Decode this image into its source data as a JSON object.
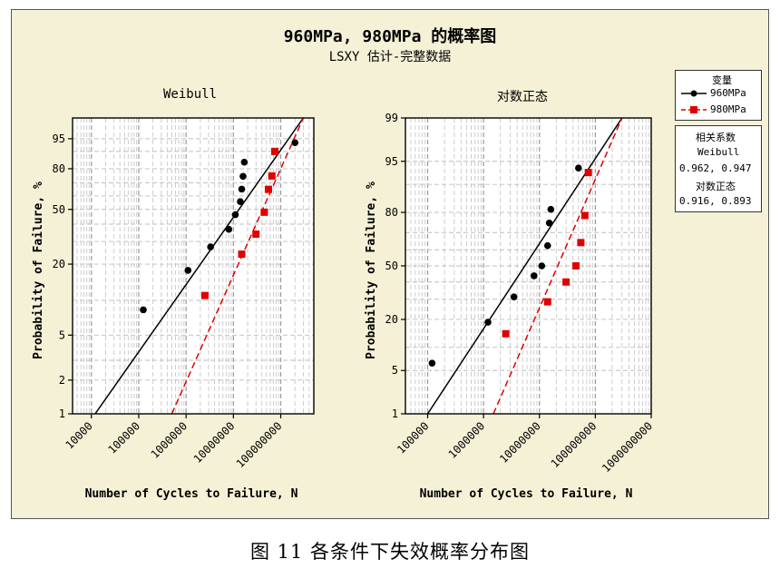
{
  "figure": {
    "title": "960MPa, 980MPa 的概率图",
    "subtitle": "LSXY 估计-完整数据",
    "caption": "图 11 各条件下失效概率分布图"
  },
  "legend": {
    "title": "变量",
    "items": [
      {
        "label": "960MPa",
        "color": "#000000",
        "marker": "circle"
      },
      {
        "label": "980MPa",
        "color": "#e00000",
        "marker": "square"
      }
    ]
  },
  "correlation_box": {
    "title": "相关系数",
    "weibull_label": "Weibull",
    "weibull_values": "0.962, 0.947",
    "lognormal_label": "对数正态",
    "lognormal_values": "0.916, 0.893"
  },
  "chart_data": [
    {
      "type": "scatter",
      "title": "Weibull",
      "xlabel": "Number of Cycles to Failure, N",
      "ylabel": "Probability of Failure, %",
      "x_scale": "log",
      "y_scale": "weibull",
      "xlim": [
        4000,
        500000000
      ],
      "ylim": [
        1,
        99
      ],
      "x_ticks": [
        "10000",
        "100000",
        "1000000",
        "10000000",
        "100000000"
      ],
      "y_ticks": [
        "1",
        "2",
        "5",
        "20",
        "50",
        "80",
        "95"
      ],
      "grid": true,
      "series": [
        {
          "name": "960MPa",
          "color": "#000000",
          "points": [
            [
              125000,
              8.3
            ],
            [
              1100000,
              17.8
            ],
            [
              3300000,
              27.3
            ],
            [
              8000000,
              36.8
            ],
            [
              11000000,
              46.3
            ],
            [
              14000000,
              55.7
            ],
            [
              15000000,
              65.2
            ],
            [
              16000000,
              74.7
            ],
            [
              200000000,
              93.7
            ],
            [
              17000000,
              84.2
            ]
          ],
          "fit_line": [
            [
              12000,
              1
            ],
            [
              300000000,
              99
            ]
          ]
        },
        {
          "name": "980MPa",
          "color": "#e00000",
          "points": [
            [
              2500000,
              11
            ],
            [
              15000000,
              24
            ],
            [
              30000000,
              34
            ],
            [
              45000000,
              48
            ],
            [
              55000000,
              65
            ],
            [
              65000000,
              75
            ],
            [
              75000000,
              90
            ]
          ],
          "fit_line": [
            [
              500000,
              1
            ],
            [
              300000000,
              99
            ]
          ]
        }
      ]
    },
    {
      "type": "scatter",
      "title": "对数正态",
      "xlabel": "Number of Cycles to Failure, N",
      "ylabel": "Probability of Failure, %",
      "x_scale": "log",
      "y_scale": "normal",
      "xlim": [
        40000,
        1000000000
      ],
      "ylim": [
        1,
        99
      ],
      "x_ticks": [
        "100000",
        "1000000",
        "10000000",
        "100000000",
        "1000000000"
      ],
      "y_ticks": [
        "1",
        "5",
        "20",
        "50",
        "80",
        "95",
        "99"
      ],
      "grid": true,
      "series": [
        {
          "name": "960MPa",
          "color": "#000000",
          "points": [
            [
              120000,
              6.3
            ],
            [
              1200000,
              18.8
            ],
            [
              3500000,
              31.3
            ],
            [
              8000000,
              43.8
            ],
            [
              11000000,
              50
            ],
            [
              14000000,
              62.5
            ],
            [
              15000000,
              75
            ],
            [
              16000000,
              81.3
            ],
            [
              50000000,
              93.8
            ]
          ],
          "fit_line": [
            [
              100000,
              1
            ],
            [
              300000000,
              99
            ]
          ]
        },
        {
          "name": "980MPa",
          "color": "#e00000",
          "points": [
            [
              2500000,
              14.3
            ],
            [
              14000000,
              28.6
            ],
            [
              30000000,
              40
            ],
            [
              45000000,
              50
            ],
            [
              55000000,
              64.3
            ],
            [
              65000000,
              78.6
            ],
            [
              75000000,
              92.9
            ]
          ],
          "fit_line": [
            [
              1500000,
              1
            ],
            [
              300000000,
              99
            ]
          ]
        }
      ]
    }
  ]
}
